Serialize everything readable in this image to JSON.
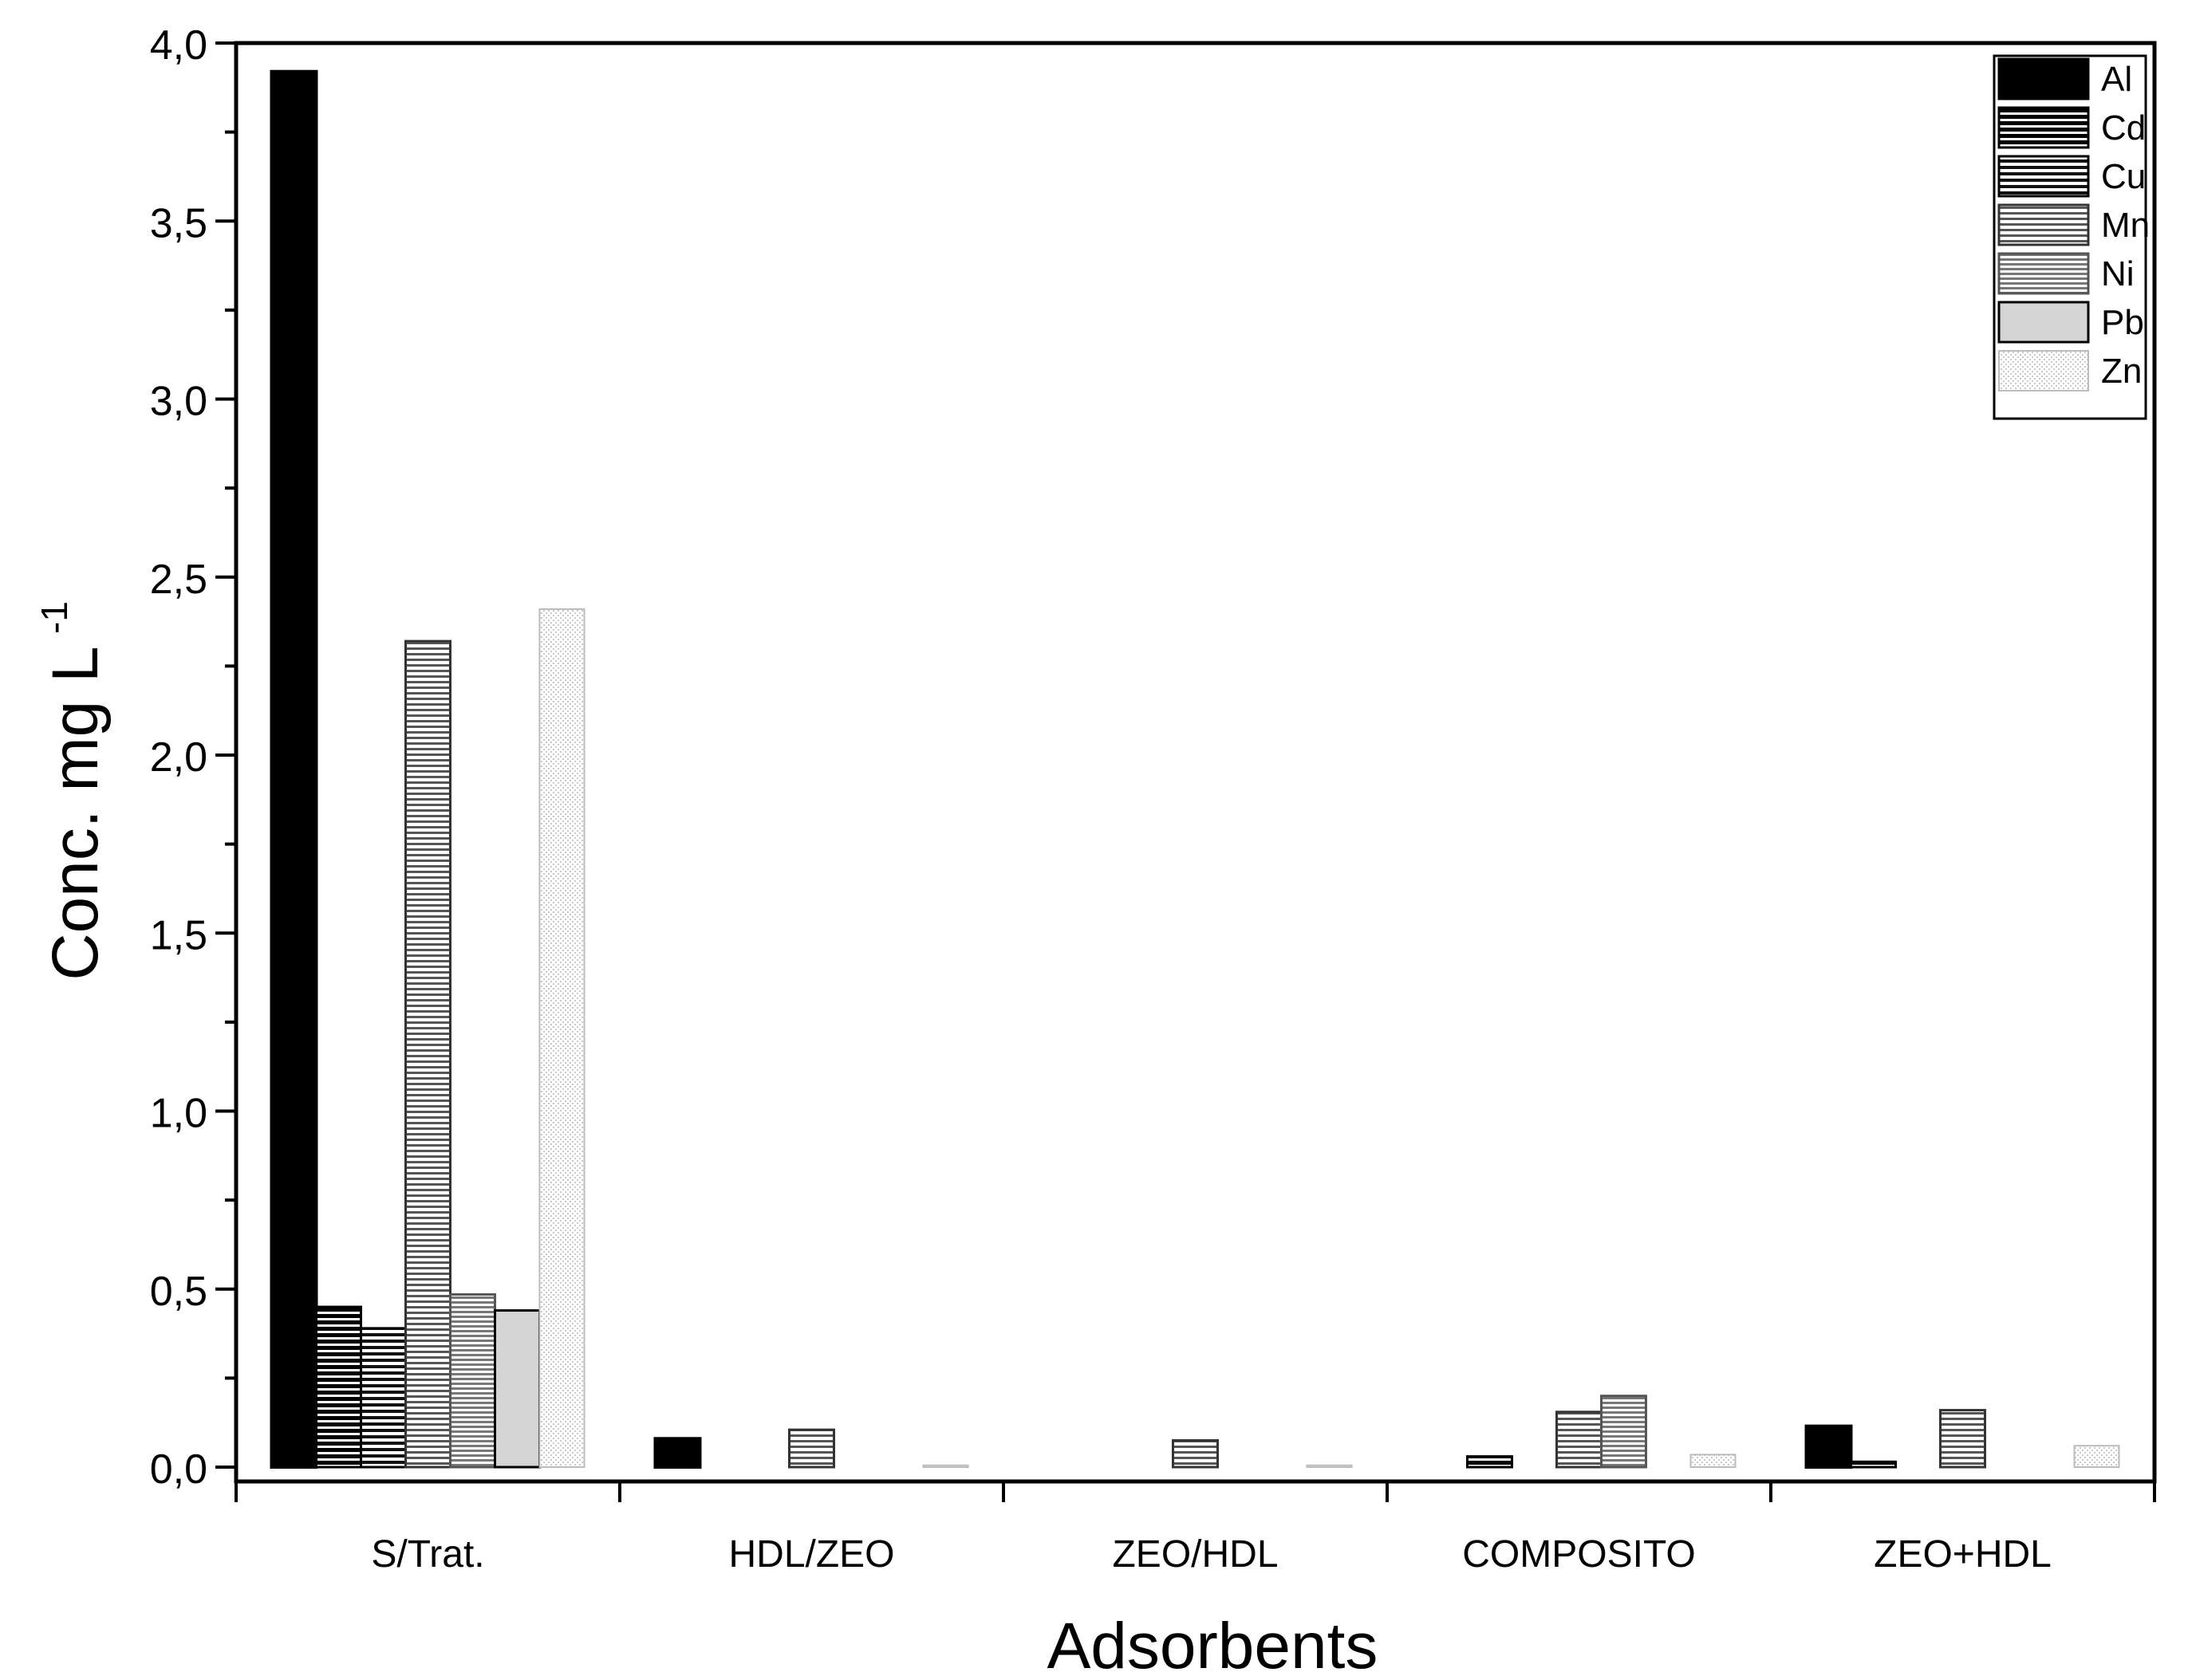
{
  "chart_data": {
    "type": "bar",
    "title": "",
    "xlabel": "Adsorbents",
    "ylabel_main": "Conc. mg L",
    "ylabel_superscript": "-1",
    "ylim": [
      0.0,
      4.0
    ],
    "yticks": [
      "0,0",
      "0,5",
      "1,0",
      "1,5",
      "2,0",
      "2,5",
      "3,0",
      "3,5",
      "4,0"
    ],
    "categories": [
      "S/Trat.",
      "HDL/ZEO",
      "ZEO/HDL",
      "COMPOSITO",
      "ZEO+HDL"
    ],
    "legend_position": "top-right",
    "grid": false,
    "series": [
      {
        "name": "Al",
        "values": [
          3.92,
          0.08,
          0.0,
          0.0,
          0.115
        ]
      },
      {
        "name": "Cd",
        "values": [
          0.45,
          0.0,
          0.0,
          0.03,
          0.015
        ]
      },
      {
        "name": "Cu",
        "values": [
          0.39,
          0.0,
          0.0,
          0.0,
          0.0
        ]
      },
      {
        "name": "Mn",
        "values": [
          2.32,
          0.105,
          0.075,
          0.155,
          0.16
        ]
      },
      {
        "name": "Ni",
        "values": [
          0.485,
          0.0,
          0.0,
          0.2,
          0.0
        ]
      },
      {
        "name": "Pb",
        "values": [
          0.44,
          0.0,
          0.0,
          0.0,
          0.0
        ]
      },
      {
        "name": "Zn",
        "values": [
          2.41,
          0.005,
          0.005,
          0.035,
          0.06
        ]
      }
    ]
  }
}
